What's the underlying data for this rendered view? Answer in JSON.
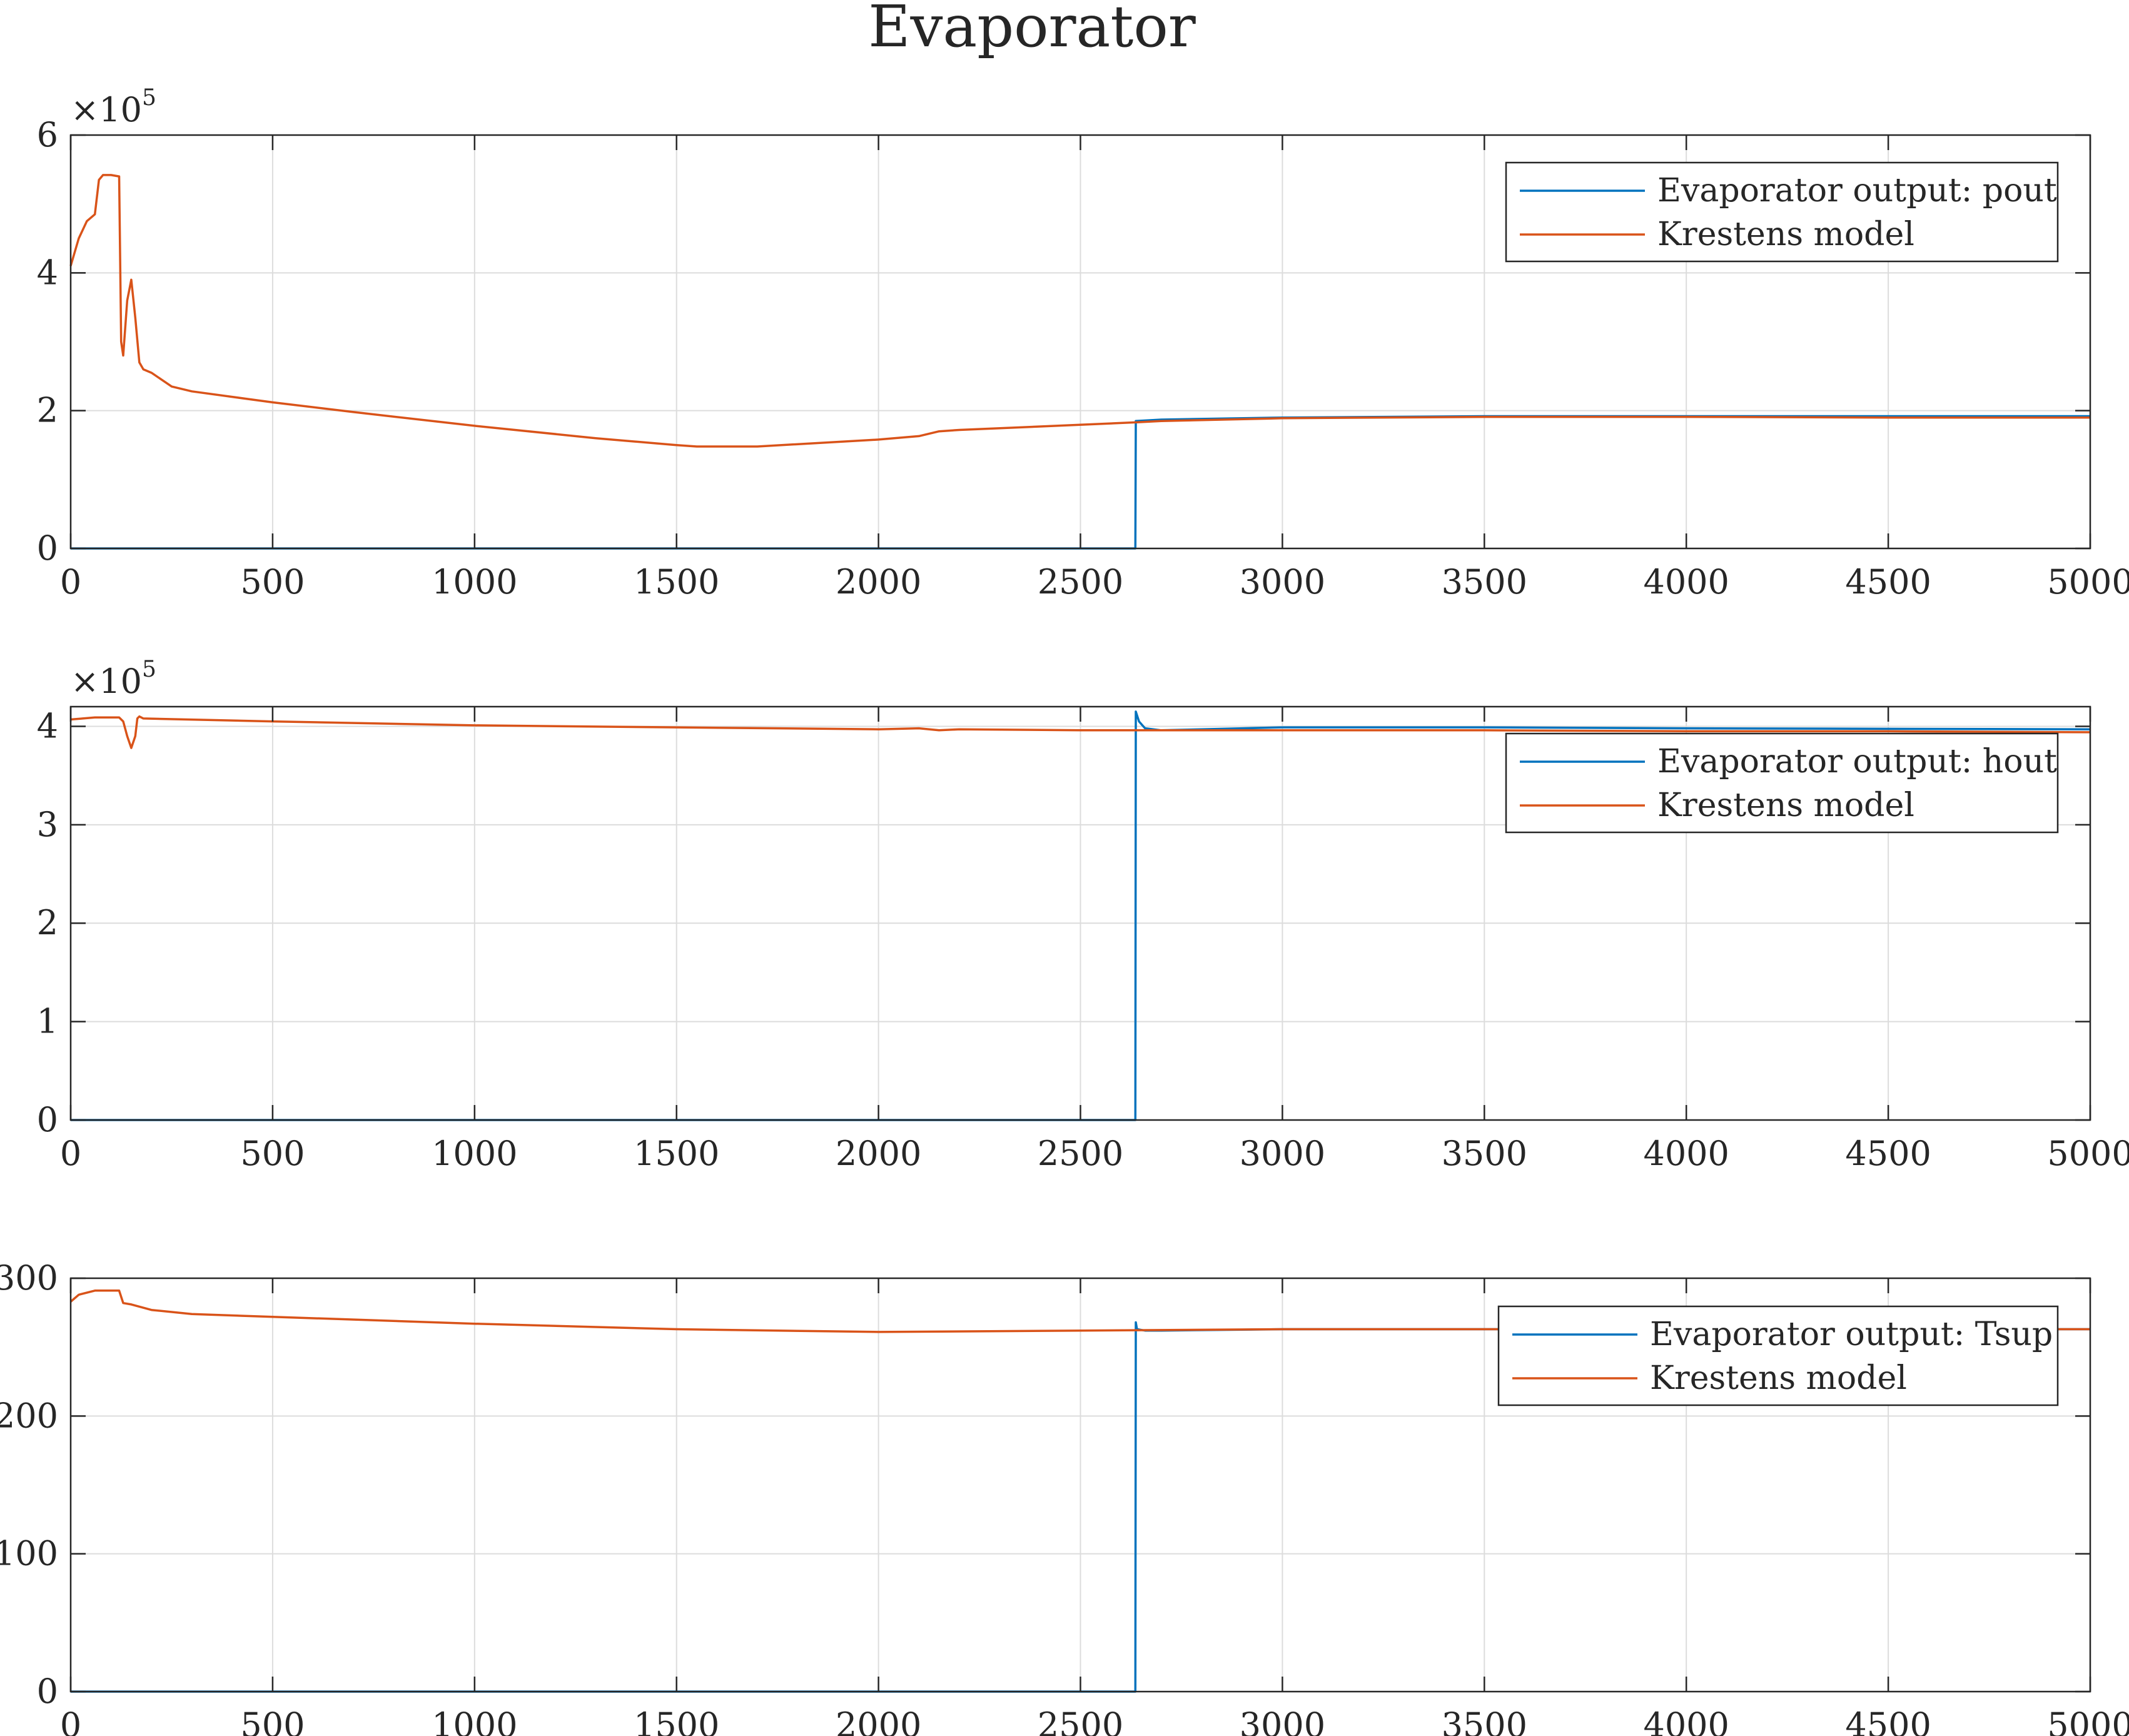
{
  "title": "Evaporator",
  "colors": {
    "series_blue": "#0072BD",
    "series_orange": "#D95319",
    "grid": "#dcdcdc",
    "axis": "#262626"
  },
  "chart_data": [
    {
      "type": "line",
      "grid": true,
      "legend": "top-right",
      "xlim": [
        0,
        5000
      ],
      "ylim": [
        0,
        6
      ],
      "y_multiplier": {
        "base": "×10",
        "exponent": "5"
      },
      "xticks": [
        0,
        500,
        1000,
        1500,
        2000,
        2500,
        3000,
        3500,
        4000,
        4500,
        5000
      ],
      "yticks": [
        0,
        2,
        4,
        6
      ],
      "series": [
        {
          "name": "Evaporator output: pout",
          "color": "#0072BD",
          "x": [
            0,
            2635,
            2636,
            2637,
            2700,
            3000,
            3500,
            4000,
            4500,
            5000
          ],
          "y": [
            0,
            0,
            0,
            1.85,
            1.87,
            1.9,
            1.92,
            1.92,
            1.92,
            1.92
          ]
        },
        {
          "name": "Krestens model",
          "color": "#D95319",
          "x": [
            0,
            20,
            40,
            60,
            70,
            80,
            100,
            120,
            125,
            130,
            140,
            150,
            160,
            170,
            180,
            200,
            250,
            300,
            400,
            500,
            700,
            1000,
            1300,
            1500,
            1550,
            1700,
            2000,
            2100,
            2150,
            2200,
            2400,
            2636,
            2700,
            3000,
            3500,
            4000,
            4500,
            5000
          ],
          "y": [
            4.1,
            4.5,
            4.75,
            4.85,
            5.35,
            5.42,
            5.42,
            5.4,
            3.0,
            2.8,
            3.6,
            3.9,
            3.35,
            2.7,
            2.6,
            2.55,
            2.35,
            2.28,
            2.2,
            2.12,
            1.98,
            1.78,
            1.6,
            1.5,
            1.48,
            1.48,
            1.58,
            1.63,
            1.7,
            1.72,
            1.77,
            1.83,
            1.85,
            1.89,
            1.91,
            1.91,
            1.9,
            1.9
          ]
        }
      ]
    },
    {
      "type": "line",
      "grid": true,
      "legend": "top-right",
      "xlim": [
        0,
        5000
      ],
      "ylim": [
        0,
        4.2
      ],
      "y_multiplier": {
        "base": "×10",
        "exponent": "5"
      },
      "xticks": [
        0,
        500,
        1000,
        1500,
        2000,
        2500,
        3000,
        3500,
        4000,
        4500,
        5000
      ],
      "yticks": [
        0,
        1,
        2,
        3,
        4
      ],
      "series": [
        {
          "name": "Evaporator output: hout",
          "color": "#0072BD",
          "x": [
            0,
            2635,
            2636,
            2637,
            2645,
            2660,
            2700,
            2800,
            3000,
            3500,
            4000,
            5000
          ],
          "y": [
            0,
            0,
            0,
            4.15,
            4.05,
            3.98,
            3.96,
            3.97,
            3.99,
            3.99,
            3.98,
            3.97
          ]
        },
        {
          "name": "Krestens model",
          "color": "#D95319",
          "x": [
            0,
            30,
            60,
            120,
            130,
            140,
            150,
            160,
            165,
            170,
            180,
            500,
            1000,
            1500,
            2000,
            2100,
            2150,
            2200,
            2500,
            3000,
            3500,
            4000,
            4500,
            5000
          ],
          "y": [
            4.07,
            4.08,
            4.09,
            4.09,
            4.05,
            3.9,
            3.78,
            3.9,
            4.08,
            4.1,
            4.08,
            4.05,
            4.01,
            3.99,
            3.97,
            3.98,
            3.96,
            3.97,
            3.96,
            3.96,
            3.96,
            3.95,
            3.95,
            3.94
          ]
        }
      ]
    },
    {
      "type": "line",
      "grid": true,
      "legend": "top-right",
      "xlim": [
        0,
        5000
      ],
      "ylim": [
        0,
        300
      ],
      "xticks": [
        0,
        500,
        1000,
        1500,
        2000,
        2500,
        3000,
        3500,
        4000,
        4500,
        5000
      ],
      "yticks": [
        0,
        100,
        200,
        300
      ],
      "series": [
        {
          "name": "Evaporator output: Tsup",
          "color": "#0072BD",
          "x": [
            0,
            2635,
            2636,
            2637,
            2640,
            2660,
            2700,
            3000,
            3500,
            4000,
            5000
          ],
          "y": [
            0,
            0,
            0,
            268,
            263,
            262,
            262,
            263,
            263,
            263,
            263
          ]
        },
        {
          "name": "Krestens model",
          "color": "#D95319",
          "x": [
            0,
            20,
            60,
            100,
            120,
            130,
            150,
            200,
            300,
            500,
            1000,
            1500,
            2000,
            2500,
            3000,
            3500,
            4000,
            5000
          ],
          "y": [
            283,
            288,
            291,
            291,
            291,
            282,
            281,
            277,
            274,
            272,
            267,
            263,
            261,
            262,
            263,
            263,
            263,
            263
          ]
        }
      ]
    }
  ]
}
